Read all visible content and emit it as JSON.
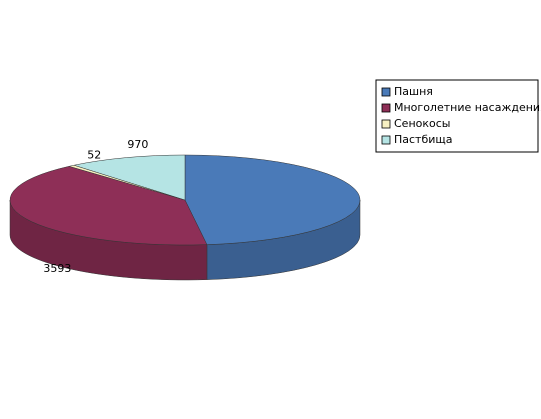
{
  "chart_data": {
    "type": "pie3d",
    "categories": [
      "Пашня",
      "Многолетние насаждения",
      "Сенокосы",
      "Пастбища"
    ],
    "values": [
      4260,
      3593,
      52,
      970
    ],
    "colors": [
      "#4a7ab8",
      "#8e2f57",
      "#f7f0c2",
      "#b5e4e4"
    ],
    "labels_shown": [
      false,
      true,
      true,
      true
    ],
    "legend": "right"
  }
}
